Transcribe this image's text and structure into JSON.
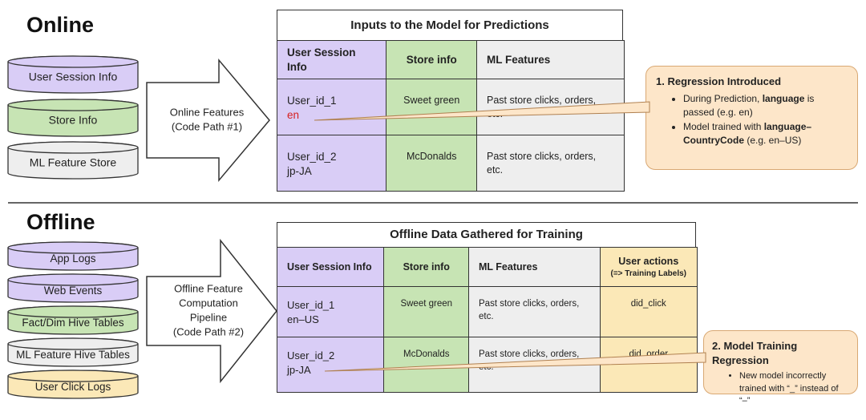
{
  "online": {
    "title": "Online",
    "sources": [
      "User Session Info",
      "Store Info",
      "ML Feature Store"
    ],
    "arrow": [
      "Online Features",
      "(Code Path #1)"
    ],
    "table": {
      "title": "Inputs to the Model for Predictions",
      "header": [
        "User Session Info",
        "Store info",
        "ML Features"
      ],
      "rows": [
        [
          [
            "User_id_1",
            "en"
          ],
          "Sweet green",
          "Past store clicks, orders, etc."
        ],
        [
          [
            "User_id_2",
            "jp-JA"
          ],
          "McDonalds",
          "Past store clicks, orders, etc."
        ]
      ]
    },
    "callout": {
      "title": "1. Regression Introduced",
      "bullets": [
        [
          {
            "text": "During Prediction, "
          },
          {
            "text": "language",
            "bold": true
          },
          {
            "text": " is passed (e.g. en)"
          }
        ],
        [
          {
            "text": "Model trained with "
          },
          {
            "text": "language–CountryCode",
            "bold": true
          },
          {
            "text": " (e.g. en–US)"
          }
        ]
      ]
    }
  },
  "offline": {
    "title": "Offline",
    "sources": [
      "App Logs",
      "Web Events",
      "Fact/Dim Hive Tables",
      "ML Feature Hive Tables",
      "User Click Logs"
    ],
    "arrow": [
      "Offline Feature",
      "Computation",
      "Pipeline",
      "(Code Path #2)"
    ],
    "table": {
      "title": "Offline Data Gathered for Training",
      "header": [
        "User Session Info",
        "Store info",
        "ML Features",
        [
          "User actions",
          "(=> Training Labels)"
        ]
      ],
      "rows": [
        [
          [
            "User_id_1",
            "en–US"
          ],
          "Sweet green",
          "Past store clicks, orders, etc.",
          "did_click"
        ],
        [
          [
            "User_id_2",
            "jp-JA"
          ],
          "McDonalds",
          "Past store clicks, orders, etc.",
          "did_order"
        ]
      ]
    },
    "callout": {
      "title": "2. Model Training Regression",
      "bullets": [
        [
          {
            "text": "New model incorrectly trained with “_” instead of “–”"
          }
        ]
      ]
    }
  }
}
